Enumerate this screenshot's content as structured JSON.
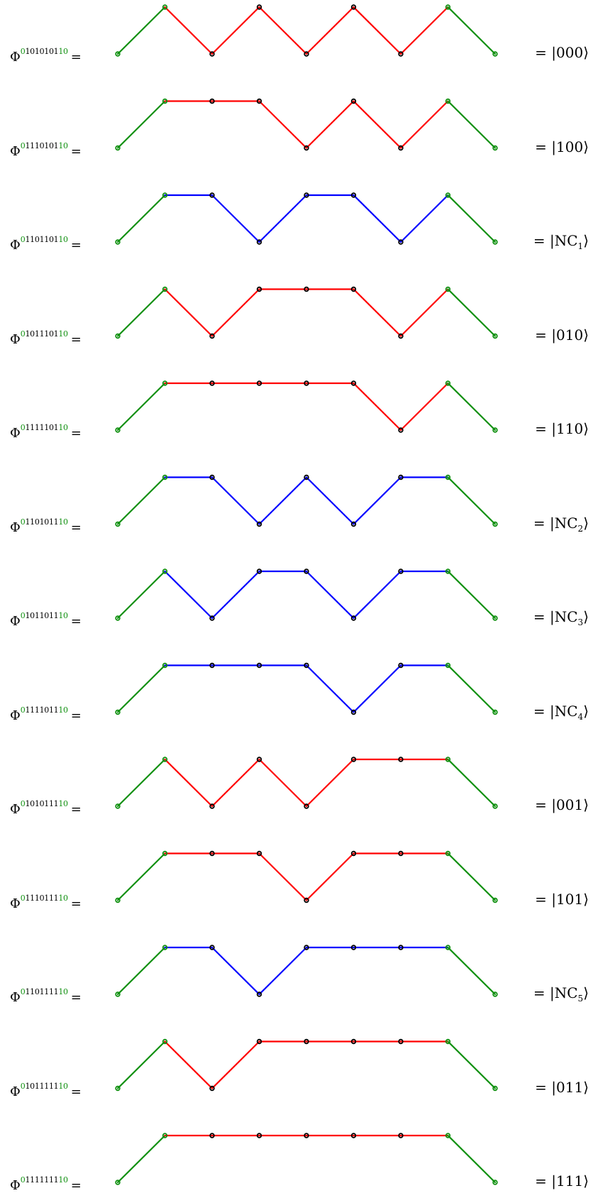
{
  "colors": {
    "boundary": "#109010",
    "uncolored": "#ff0000",
    "nc": "#0000ff",
    "vertex_outline": "#000000"
  },
  "rows": [
    {
      "symbol": "Φ",
      "sup_prefix": "0",
      "sup_middle": "1010101",
      "sup_suffix": "10",
      "eq": "=",
      "heights": [
        0,
        1,
        0,
        1,
        0,
        1,
        0,
        1,
        0
      ],
      "segment_color": "uncolored",
      "ket": "|000⟩"
    },
    {
      "symbol": "Φ",
      "sup_prefix": "0",
      "sup_middle": "1110101",
      "sup_suffix": "10",
      "eq": "=",
      "heights": [
        0,
        1,
        1,
        1,
        0,
        1,
        0,
        1,
        0
      ],
      "segment_color": "uncolored",
      "ket": "|100⟩"
    },
    {
      "symbol": "Φ",
      "sup_prefix": "0",
      "sup_middle": "1101101",
      "sup_suffix": "10",
      "eq": "=",
      "heights": [
        0,
        1,
        1,
        0,
        1,
        1,
        0,
        1,
        0
      ],
      "segment_color": "nc",
      "ket_base": "|NC",
      "ket_sub": "1",
      "ket_close": "⟩"
    },
    {
      "symbol": "Φ",
      "sup_prefix": "0",
      "sup_middle": "1011101",
      "sup_suffix": "10",
      "eq": "=",
      "heights": [
        0,
        1,
        0,
        1,
        1,
        1,
        0,
        1,
        0
      ],
      "segment_color": "uncolored",
      "ket": "|010⟩"
    },
    {
      "symbol": "Φ",
      "sup_prefix": "0",
      "sup_middle": "1111101",
      "sup_suffix": "10",
      "eq": "=",
      "heights": [
        0,
        1,
        1,
        1,
        1,
        1,
        0,
        1,
        0
      ],
      "segment_color": "uncolored",
      "ket": "|110⟩"
    },
    {
      "symbol": "Φ",
      "sup_prefix": "0",
      "sup_middle": "1101011",
      "sup_suffix": "10",
      "eq": "=",
      "heights": [
        0,
        1,
        1,
        0,
        1,
        0,
        1,
        1,
        0
      ],
      "segment_color": "nc",
      "ket_base": "|NC",
      "ket_sub": "2",
      "ket_close": "⟩"
    },
    {
      "symbol": "Φ",
      "sup_prefix": "0",
      "sup_middle": "1011011",
      "sup_suffix": "10",
      "eq": "=",
      "heights": [
        0,
        1,
        0,
        1,
        1,
        0,
        1,
        1,
        0
      ],
      "segment_color": "nc",
      "ket_base": "|NC",
      "ket_sub": "3",
      "ket_close": "⟩"
    },
    {
      "symbol": "Φ",
      "sup_prefix": "0",
      "sup_middle": "1111011",
      "sup_suffix": "10",
      "eq": "=",
      "heights": [
        0,
        1,
        1,
        1,
        1,
        0,
        1,
        1,
        0
      ],
      "segment_color": "nc",
      "ket_base": "|NC",
      "ket_sub": "4",
      "ket_close": "⟩"
    },
    {
      "symbol": "Φ",
      "sup_prefix": "0",
      "sup_middle": "1010111",
      "sup_suffix": "10",
      "eq": "=",
      "heights": [
        0,
        1,
        0,
        1,
        0,
        1,
        1,
        1,
        0
      ],
      "segment_color": "uncolored",
      "ket": "|001⟩"
    },
    {
      "symbol": "Φ",
      "sup_prefix": "0",
      "sup_middle": "1110111",
      "sup_suffix": "10",
      "eq": "=",
      "heights": [
        0,
        1,
        1,
        1,
        0,
        1,
        1,
        1,
        0
      ],
      "segment_color": "uncolored",
      "ket": "|101⟩"
    },
    {
      "symbol": "Φ",
      "sup_prefix": "0",
      "sup_middle": "1101111",
      "sup_suffix": "10",
      "eq": "=",
      "heights": [
        0,
        1,
        1,
        0,
        1,
        1,
        1,
        1,
        0
      ],
      "segment_color": "nc",
      "ket_base": "|NC",
      "ket_sub": "5",
      "ket_close": "⟩"
    },
    {
      "symbol": "Φ",
      "sup_prefix": "0",
      "sup_middle": "1011111",
      "sup_suffix": "10",
      "eq": "=",
      "heights": [
        0,
        1,
        0,
        1,
        1,
        1,
        1,
        1,
        0
      ],
      "segment_color": "uncolored",
      "ket": "|011⟩"
    },
    {
      "symbol": "Φ",
      "sup_prefix": "0",
      "sup_middle": "1111111",
      "sup_suffix": "10",
      "eq": "=",
      "heights": [
        0,
        1,
        1,
        1,
        1,
        1,
        1,
        1,
        0
      ],
      "segment_color": "uncolored",
      "ket": "|111⟩"
    }
  ]
}
